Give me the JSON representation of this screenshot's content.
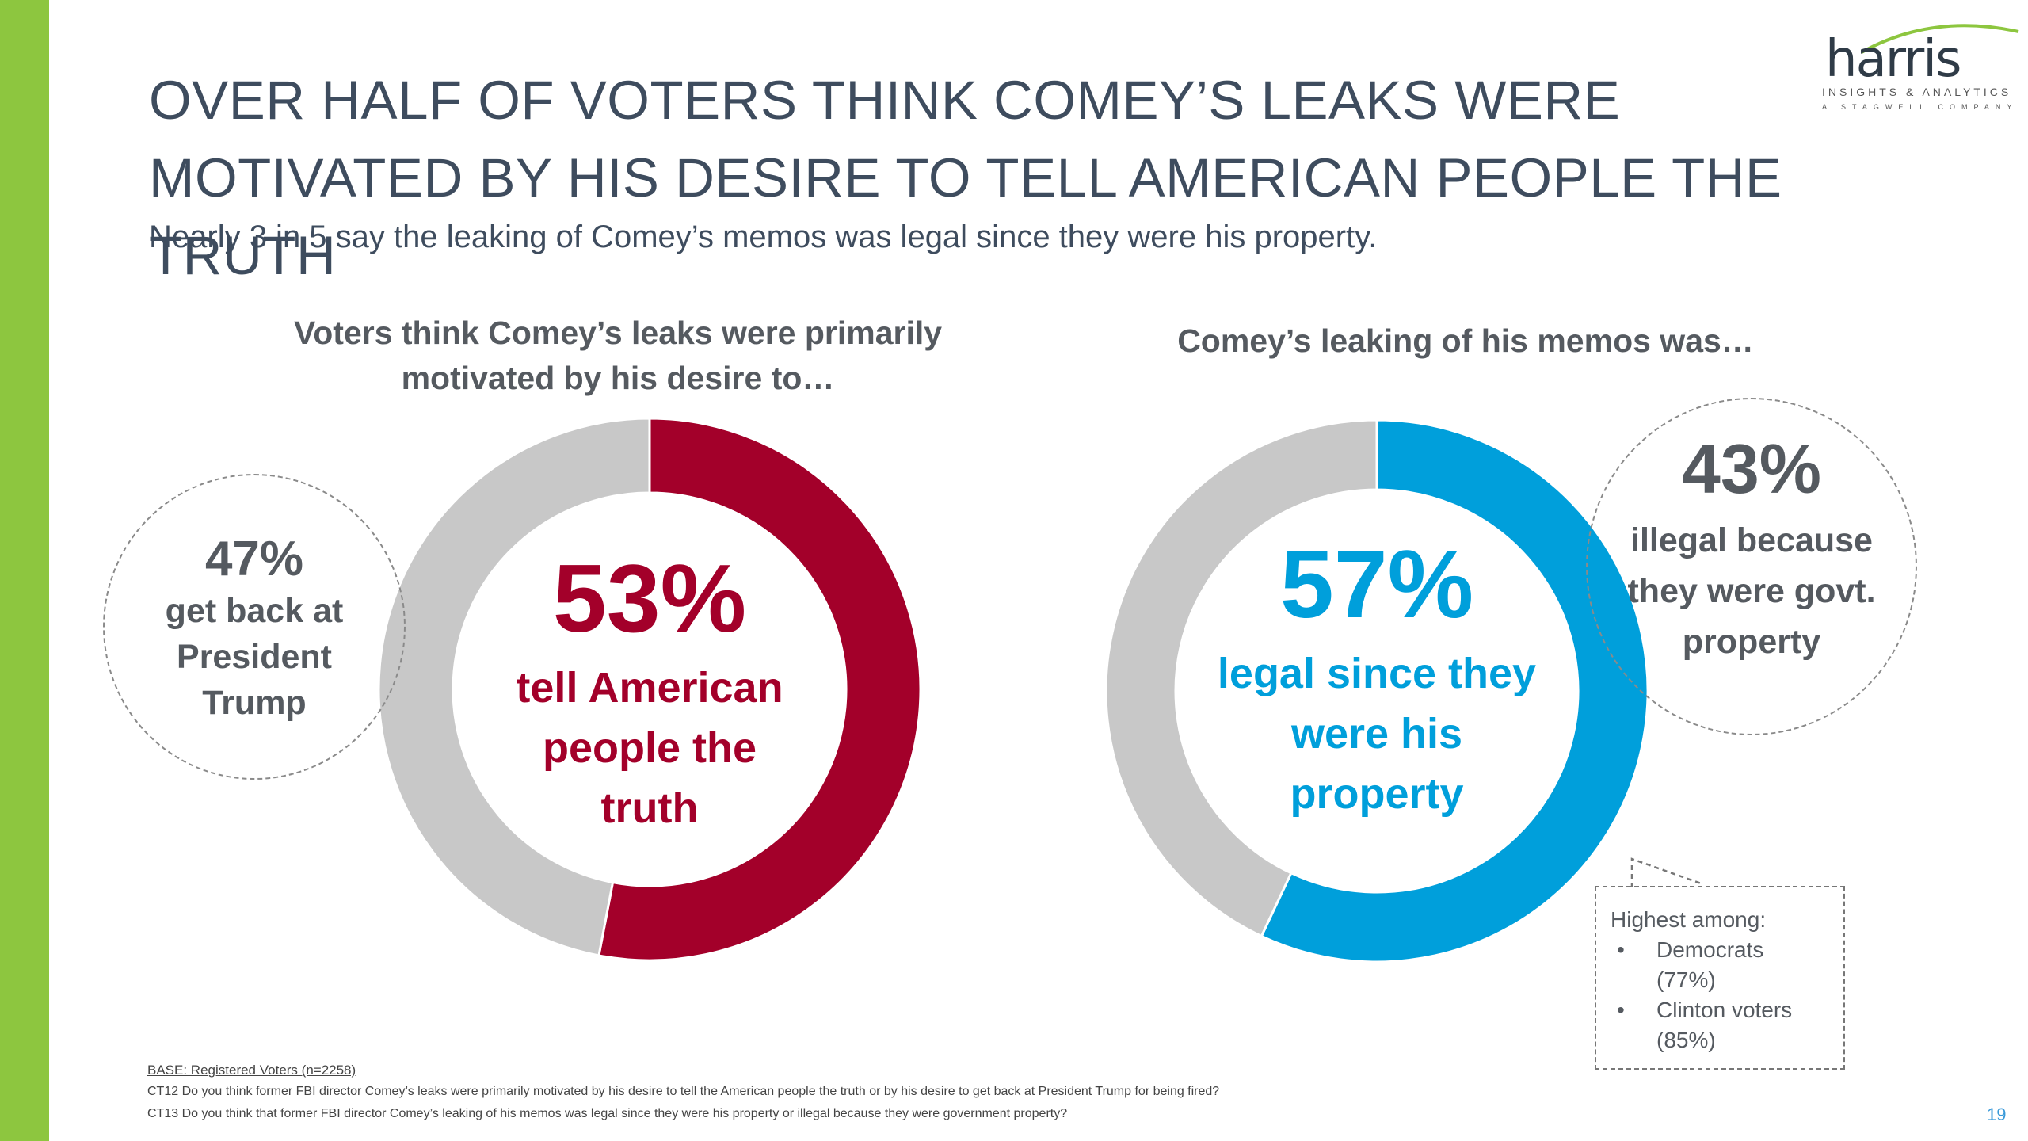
{
  "slide": {
    "title_line1": "OVER HALF OF VOTERS THINK COMEY’S LEAKS WERE",
    "title_line2": "MOTIVATED BY HIS DESIRE TO TELL AMERICAN PEOPLE THE TRUTH",
    "subtitle": "Nearly 3 in 5 say the leaking of Comey’s memos was legal since they were his property.",
    "page_number": "19"
  },
  "logo": {
    "word": "harris",
    "tagline": "INSIGHTS & ANALYTICS",
    "subtagline": "A STAGWELL COMPANY",
    "arc_color": "#8dc63f"
  },
  "chart_data": [
    {
      "type": "pie",
      "title": "Voters think Comey’s leaks were primarily motivated by his desire to…",
      "title_line1": "Voters think Comey’s leaks were primarily",
      "title_line2": "motivated by his desire to…",
      "donut": true,
      "slices": [
        {
          "label": "tell American people the truth",
          "value": 53,
          "color": "#a3002a",
          "pct_text": "53%",
          "text_lines": [
            "tell American",
            "people the",
            "truth"
          ]
        },
        {
          "label": "get back at President Trump",
          "value": 47,
          "color": "#c8c8c8",
          "pct_text": "47%",
          "text_lines": [
            "get back at",
            "President",
            "Trump"
          ]
        }
      ]
    },
    {
      "type": "pie",
      "title": "Comey’s leaking of his memos was…",
      "donut": true,
      "slices": [
        {
          "label": "legal since they were his property",
          "value": 57,
          "color": "#009fdb",
          "pct_text": "57%",
          "text_lines": [
            "legal since they",
            "were his",
            "property"
          ]
        },
        {
          "label": "illegal because they were govt. property",
          "value": 43,
          "color": "#c8c8c8",
          "pct_text": "43%",
          "text_lines": [
            "illegal because",
            "they were govt.",
            "property"
          ]
        }
      ]
    }
  ],
  "callout": {
    "heading": "Highest among:",
    "items": [
      {
        "line1": "Democrats",
        "line2": "(77%)"
      },
      {
        "line1": "Clinton voters",
        "line2": "(85%)"
      }
    ]
  },
  "footer": {
    "base": "BASE: Registered Voters (n=2258)",
    "q1": "CT12 Do you think former FBI director Comey’s leaks were primarily motivated by his desire to tell the American people the truth or by his desire to get back at President Trump for being fired?",
    "q2": "CT13 Do you think that former FBI director Comey’s leaking of his memos was legal since they were his property or illegal because they were government property?"
  }
}
